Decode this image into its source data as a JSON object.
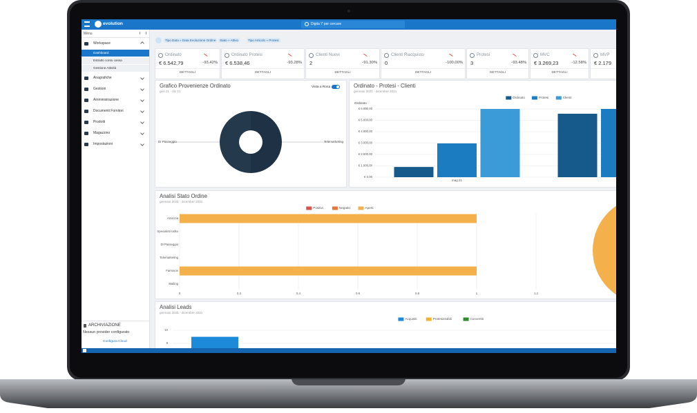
{
  "header": {
    "logo": "evolution",
    "search": "Digita '/' per cercare"
  },
  "sidebar": {
    "menu": "Menu",
    "items": [
      {
        "label": "Workspace",
        "children": [
          "Dashboard",
          "Estratto conto cassa",
          "Gestione Attività"
        ]
      },
      {
        "label": "Anagrafiche"
      },
      {
        "label": "Gestioni"
      },
      {
        "label": "Amministrazione"
      },
      {
        "label": "Documenti Fornitori"
      },
      {
        "label": "Prodotti"
      },
      {
        "label": "Magazzino"
      },
      {
        "label": "Impostazioni"
      }
    ],
    "archive": {
      "title": "ARCHIVIAZIONE",
      "status": "Nessun provider configurato",
      "action": "Configura Cloud"
    }
  },
  "filters": [
    "Tipo Data » Data Evoluzione Ordine",
    "Stato » Attivo",
    "Tipo Articolo » Protesi"
  ],
  "kpis": [
    {
      "label": "Ordinato",
      "value": "€ 6.542,79",
      "change": "-93.42%",
      "action": "DETTAGLI"
    },
    {
      "label": "Ordinato Protesi",
      "value": "€ 6.538,46",
      "change": "-93.28%",
      "action": "DETTAGLI"
    },
    {
      "label": "Clienti Nuovi",
      "value": "2",
      "change": "-91.30%",
      "action": "DETTAGLI"
    },
    {
      "label": "Clienti Riacquisto",
      "value": "0",
      "change": "-100.00%",
      "action": "DETTAGLI"
    },
    {
      "label": "Protesi",
      "value": "3",
      "change": "-93.48%",
      "action": "DETTAGLI"
    },
    {
      "label": "MVC",
      "value": "€ 3.269,23",
      "change": "-12.58%",
      "action": "DETTAGLI"
    },
    {
      "label": "MVP",
      "value": "€ 2.179",
      "action": "DETTAGLI"
    }
  ],
  "provenienze": {
    "type": "pie",
    "title": "Grafico Provenienze Ordinato",
    "subtitle": "gen 21 - dic 21",
    "toggle": "Vista a Rosa",
    "categories": [
      "DI Passeggio",
      "Telemarketing"
    ],
    "values": [
      50,
      50
    ],
    "colors": [
      "#1f3245",
      "#25394d"
    ]
  },
  "ordinato": {
    "type": "bar",
    "title": "Ordinato - Protesi - Clienti",
    "subtitle": "gennaio 2021 - dicembre 2021",
    "y_label": "Ordinato",
    "categories": [
      "mag 21",
      null
    ],
    "series": [
      {
        "name": "Ordinato",
        "color": "#155a8a",
        "values": [
          900,
          5580
        ]
      },
      {
        "name": "Protesi",
        "color": "#1c7cc2",
        "values": [
          2970,
          6000
        ]
      },
      {
        "name": "Clienti",
        "color": "#3b9ad8",
        "values": [
          6000,
          null
        ]
      }
    ],
    "ylim": [
      0,
      6000
    ],
    "yticks": [
      {
        "value": 0,
        "label": "€ 0,00"
      },
      {
        "value": 1000,
        "label": "€ 1.000,00"
      },
      {
        "value": 2000,
        "label": "€ 2.000,00"
      },
      {
        "value": 3000,
        "label": "€ 3.000,00"
      },
      {
        "value": 4000,
        "label": "€ 4.000,00"
      },
      {
        "value": 5000,
        "label": "€ 5.000,00"
      },
      {
        "value": 6000,
        "label": "€ 6.000,00"
      }
    ],
    "grid": true
  },
  "stato": {
    "type": "bar",
    "orientation": "horizontal",
    "stacked": true,
    "title": "Analisi Stato Ordine",
    "subtitle": "gennaio 2021 - dicembre 2021",
    "categories": [
      "Amicizia",
      "Specialisti Udito",
      "DI Passeggio",
      "Telemarketing",
      "Farmacie",
      "Mailing"
    ],
    "series": [
      {
        "name": "Positivi",
        "color": "#d9534f",
        "values": [
          0,
          0,
          0,
          0,
          0,
          0
        ]
      },
      {
        "name": "Negativi",
        "color": "#e8743b",
        "values": [
          0,
          0,
          0,
          0,
          0,
          0
        ]
      },
      {
        "name": "Aperti",
        "color": "#f4b04a",
        "values": [
          1,
          0,
          0,
          0,
          1,
          0
        ]
      }
    ],
    "extra_series_note_free": null,
    "xlim": [
      0,
      1.4
    ],
    "xticks": [
      0,
      0.2,
      0.4,
      0.6,
      0.8,
      1,
      1.2
    ],
    "grid": true
  },
  "leads": {
    "type": "bar",
    "title": "Analisi Leads",
    "subtitle": "gennaio 2021 - dicembre 2021",
    "categories": [
      null
    ],
    "series": [
      {
        "name": "Acquisiti",
        "color": "#1c8ad8",
        "values": [
          9
        ]
      },
      {
        "name": "Protesizzabili",
        "color": "#f2b233",
        "values": [
          null
        ]
      },
      {
        "name": "Convertiti",
        "color": "#2e8b2e",
        "values": [
          null
        ]
      }
    ],
    "ylim": [
      0,
      10
    ],
    "yticks": [
      8,
      10
    ],
    "grid": true
  }
}
